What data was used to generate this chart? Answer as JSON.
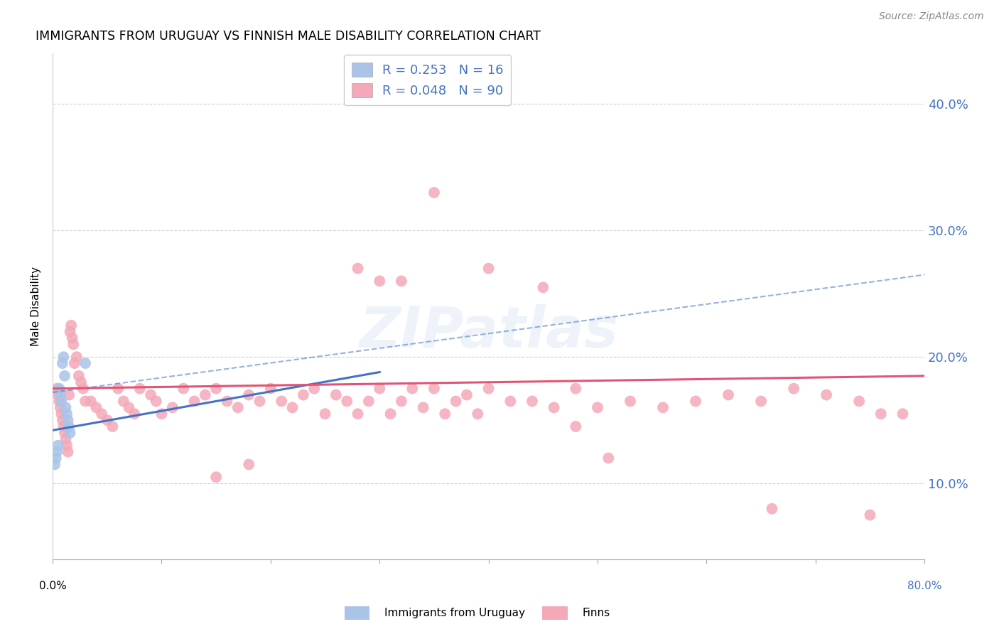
{
  "title": "IMMIGRANTS FROM URUGUAY VS FINNISH MALE DISABILITY CORRELATION CHART",
  "source": "Source: ZipAtlas.com",
  "ylabel": "Male Disability",
  "ytick_labels": [
    "10.0%",
    "20.0%",
    "30.0%",
    "40.0%"
  ],
  "ytick_values": [
    0.1,
    0.2,
    0.3,
    0.4
  ],
  "xlim": [
    0.0,
    0.8
  ],
  "ylim": [
    0.04,
    0.44
  ],
  "xtick_vals": [
    0.0,
    0.1,
    0.2,
    0.3,
    0.4,
    0.5,
    0.6,
    0.7,
    0.8
  ],
  "legend_label_uruguay": "Immigrants from Uruguay",
  "legend_label_finns": "Finns",
  "uruguay_color": "#aac4e8",
  "uruguay_line_color": "#4472c4",
  "finns_color": "#f4a8b8",
  "finns_line_color": "#e05575",
  "watermark": "ZIPatlas",
  "uruguay_R": 0.253,
  "uruguay_N": 16,
  "finns_R": 0.048,
  "finns_N": 90,
  "uruguay_line_x0": 0.0,
  "uruguay_line_y0": 0.142,
  "uruguay_line_x1": 0.3,
  "uruguay_line_y1": 0.188,
  "dashed_line_x0": 0.0,
  "dashed_line_y0": 0.172,
  "dashed_line_x1": 0.8,
  "dashed_line_y1": 0.265,
  "finns_line_x0": 0.0,
  "finns_line_y0": 0.175,
  "finns_line_x1": 0.8,
  "finns_line_y1": 0.185,
  "uru_x": [
    0.002,
    0.003,
    0.004,
    0.005,
    0.006,
    0.007,
    0.008,
    0.009,
    0.01,
    0.011,
    0.012,
    0.013,
    0.014,
    0.015,
    0.016,
    0.03
  ],
  "uru_y": [
    0.115,
    0.12,
    0.125,
    0.13,
    0.175,
    0.17,
    0.165,
    0.195,
    0.2,
    0.185,
    0.16,
    0.155,
    0.15,
    0.145,
    0.14,
    0.195
  ],
  "finn_x": [
    0.004,
    0.005,
    0.006,
    0.007,
    0.008,
    0.009,
    0.01,
    0.011,
    0.012,
    0.013,
    0.014,
    0.015,
    0.016,
    0.017,
    0.018,
    0.019,
    0.02,
    0.022,
    0.024,
    0.026,
    0.028,
    0.03,
    0.035,
    0.04,
    0.045,
    0.05,
    0.055,
    0.06,
    0.065,
    0.07,
    0.075,
    0.08,
    0.09,
    0.095,
    0.1,
    0.11,
    0.12,
    0.13,
    0.14,
    0.15,
    0.16,
    0.17,
    0.18,
    0.19,
    0.2,
    0.21,
    0.22,
    0.23,
    0.24,
    0.25,
    0.26,
    0.27,
    0.28,
    0.29,
    0.3,
    0.31,
    0.32,
    0.33,
    0.34,
    0.35,
    0.36,
    0.37,
    0.38,
    0.39,
    0.4,
    0.42,
    0.44,
    0.46,
    0.48,
    0.5,
    0.53,
    0.56,
    0.59,
    0.62,
    0.65,
    0.68,
    0.71,
    0.74,
    0.76,
    0.78,
    0.3,
    0.35,
    0.4,
    0.45,
    0.48,
    0.51,
    0.28,
    0.32,
    0.15,
    0.18,
    0.66,
    0.75
  ],
  "finn_y": [
    0.175,
    0.17,
    0.165,
    0.16,
    0.155,
    0.15,
    0.145,
    0.14,
    0.135,
    0.13,
    0.125,
    0.17,
    0.22,
    0.225,
    0.215,
    0.21,
    0.195,
    0.2,
    0.185,
    0.18,
    0.175,
    0.165,
    0.165,
    0.16,
    0.155,
    0.15,
    0.145,
    0.175,
    0.165,
    0.16,
    0.155,
    0.175,
    0.17,
    0.165,
    0.155,
    0.16,
    0.175,
    0.165,
    0.17,
    0.175,
    0.165,
    0.16,
    0.17,
    0.165,
    0.175,
    0.165,
    0.16,
    0.17,
    0.175,
    0.155,
    0.17,
    0.165,
    0.155,
    0.165,
    0.175,
    0.155,
    0.165,
    0.175,
    0.16,
    0.175,
    0.155,
    0.165,
    0.17,
    0.155,
    0.175,
    0.165,
    0.165,
    0.16,
    0.175,
    0.16,
    0.165,
    0.16,
    0.165,
    0.17,
    0.165,
    0.175,
    0.17,
    0.165,
    0.155,
    0.155,
    0.26,
    0.33,
    0.27,
    0.255,
    0.145,
    0.12,
    0.27,
    0.26,
    0.105,
    0.115,
    0.08,
    0.075
  ]
}
